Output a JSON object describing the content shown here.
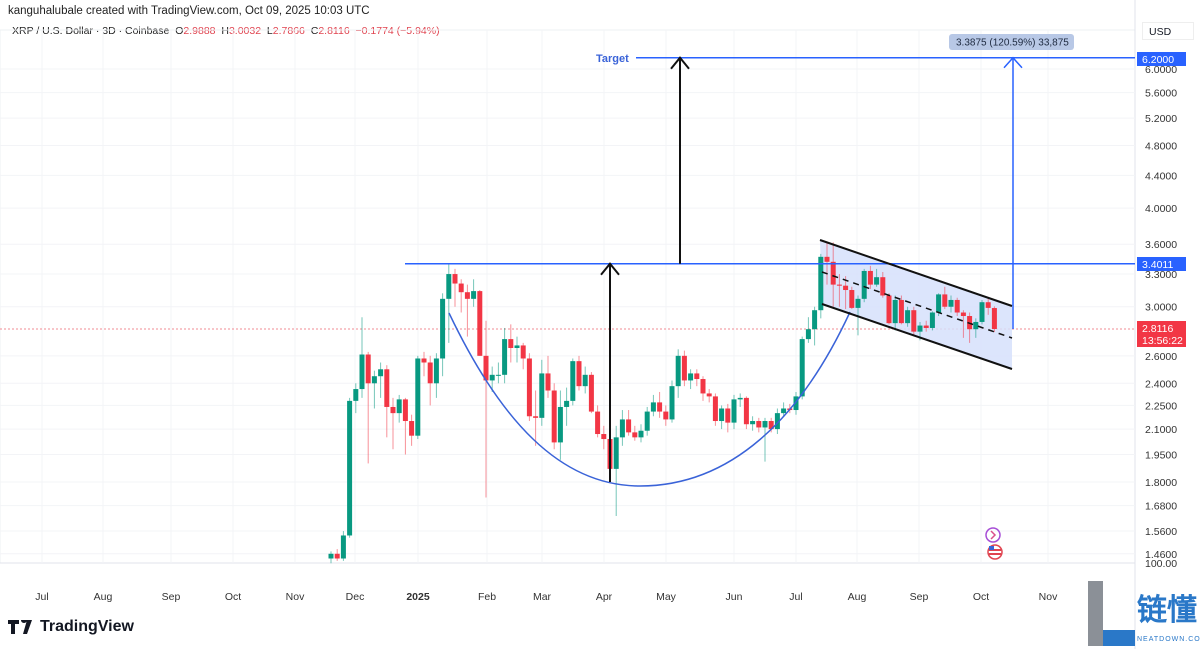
{
  "credit": "kanguhalubale created with TradingView.com, Oct 09, 2025 10:03 UTC",
  "legend": {
    "symbol": "XRP / U.S. Dollar · 3D · Coinbase",
    "open_label": "O",
    "open": "2.9888",
    "high_label": "H",
    "high": "3.0032",
    "low_label": "L",
    "low": "2.7866",
    "close_label": "C",
    "close": "2.8116",
    "change": "−0.1774 (−5.94%)"
  },
  "currency": "USD",
  "logo_text": "TradingView",
  "watermark": {
    "text": "链懂",
    "sub": "NEATDOWN.COM"
  },
  "colors": {
    "up": "#089981",
    "down": "#f23645",
    "drawing": "#2962ff",
    "accent": "#3a63d8"
  },
  "chart_data": {
    "type": "candlestick",
    "interval": "3D",
    "y_scale": "log",
    "ylim": [
      1.42,
      6.5
    ],
    "grid": true,
    "x_ticks": [
      "Jul",
      "Aug",
      "Sep",
      "Oct",
      "Nov",
      "Dec",
      "2025",
      "Feb",
      "Mar",
      "Apr",
      "May",
      "Jun",
      "Jul",
      "Aug",
      "Sep",
      "Oct",
      "Nov"
    ],
    "y_ticks": [
      "6.0000",
      "5.6000",
      "5.2000",
      "4.8000",
      "4.4000",
      "4.0000",
      "3.6000",
      "3.3000",
      "3.0000",
      "2.6000",
      "2.4000",
      "2.2500",
      "2.1000",
      "1.9500",
      "1.8000",
      "1.6800",
      "1.5600",
      "1.4600"
    ],
    "y_tick_values": [
      6.0,
      5.6,
      5.2,
      4.8,
      4.4,
      4.0,
      3.6,
      3.3,
      3.0,
      2.6,
      2.4,
      2.25,
      2.1,
      1.95,
      1.8,
      1.68,
      1.56,
      1.46
    ],
    "secondary_axis_label": "100.00",
    "candles_ohlc": [
      [
        1.44,
        1.47,
        1.42,
        1.46
      ],
      [
        1.46,
        1.48,
        1.43,
        1.44
      ],
      [
        1.44,
        1.56,
        1.43,
        1.54
      ],
      [
        1.54,
        2.3,
        1.53,
        2.28
      ],
      [
        2.28,
        2.4,
        2.2,
        2.36
      ],
      [
        2.36,
        2.91,
        2.3,
        2.61
      ],
      [
        2.61,
        2.63,
        1.9,
        2.4
      ],
      [
        2.4,
        2.49,
        2.23,
        2.45
      ],
      [
        2.45,
        2.55,
        2.3,
        2.5
      ],
      [
        2.5,
        2.53,
        2.05,
        2.24
      ],
      [
        2.24,
        2.3,
        1.98,
        2.2
      ],
      [
        2.2,
        2.32,
        2.14,
        2.29
      ],
      [
        2.29,
        2.3,
        1.95,
        2.15
      ],
      [
        2.15,
        2.19,
        2.0,
        2.06
      ],
      [
        2.06,
        2.6,
        2.04,
        2.58
      ],
      [
        2.58,
        2.63,
        2.45,
        2.55
      ],
      [
        2.55,
        2.6,
        2.25,
        2.4
      ],
      [
        2.4,
        2.62,
        2.3,
        2.58
      ],
      [
        2.58,
        3.12,
        2.45,
        3.07
      ],
      [
        3.07,
        3.4,
        2.7,
        3.3
      ],
      [
        3.3,
        3.35,
        3.0,
        3.21
      ],
      [
        3.21,
        3.25,
        2.95,
        3.13
      ],
      [
        3.13,
        3.2,
        2.75,
        3.07
      ],
      [
        3.07,
        3.25,
        3.0,
        3.14
      ],
      [
        3.14,
        3.15,
        2.6,
        2.6
      ],
      [
        2.6,
        2.88,
        1.72,
        2.42
      ],
      [
        2.42,
        2.52,
        2.34,
        2.46
      ],
      [
        2.46,
        2.55,
        2.4,
        2.46
      ],
      [
        2.46,
        2.82,
        2.4,
        2.73
      ],
      [
        2.73,
        2.85,
        2.55,
        2.66
      ],
      [
        2.66,
        2.75,
        2.55,
        2.68
      ],
      [
        2.68,
        2.7,
        2.5,
        2.58
      ],
      [
        2.58,
        2.62,
        2.15,
        2.18
      ],
      [
        2.18,
        2.35,
        2.0,
        2.17
      ],
      [
        2.17,
        2.57,
        2.12,
        2.47
      ],
      [
        2.47,
        2.6,
        2.3,
        2.35
      ],
      [
        2.35,
        2.4,
        1.98,
        2.02
      ],
      [
        2.02,
        2.35,
        1.92,
        2.24
      ],
      [
        2.24,
        2.37,
        2.12,
        2.28
      ],
      [
        2.28,
        2.58,
        2.25,
        2.56
      ],
      [
        2.56,
        2.6,
        2.35,
        2.38
      ],
      [
        2.38,
        2.52,
        2.33,
        2.46
      ],
      [
        2.46,
        2.48,
        2.2,
        2.21
      ],
      [
        2.21,
        2.25,
        2.05,
        2.07
      ],
      [
        2.07,
        2.12,
        1.98,
        2.04
      ],
      [
        2.04,
        2.14,
        1.85,
        1.87
      ],
      [
        1.87,
        2.12,
        1.63,
        2.05
      ],
      [
        2.05,
        2.22,
        2.0,
        2.16
      ],
      [
        2.16,
        2.22,
        2.06,
        2.08
      ],
      [
        2.08,
        2.12,
        2.03,
        2.05
      ],
      [
        2.05,
        2.13,
        2.02,
        2.09
      ],
      [
        2.09,
        2.24,
        2.06,
        2.21
      ],
      [
        2.21,
        2.32,
        2.18,
        2.27
      ],
      [
        2.27,
        2.34,
        2.17,
        2.21
      ],
      [
        2.21,
        2.25,
        2.12,
        2.16
      ],
      [
        2.16,
        2.42,
        2.14,
        2.38
      ],
      [
        2.38,
        2.65,
        2.3,
        2.6
      ],
      [
        2.6,
        2.64,
        2.38,
        2.42
      ],
      [
        2.42,
        2.5,
        2.36,
        2.47
      ],
      [
        2.47,
        2.5,
        2.38,
        2.43
      ],
      [
        2.43,
        2.45,
        2.28,
        2.33
      ],
      [
        2.33,
        2.36,
        2.27,
        2.31
      ],
      [
        2.31,
        2.33,
        2.12,
        2.15
      ],
      [
        2.15,
        2.25,
        2.1,
        2.23
      ],
      [
        2.23,
        2.26,
        2.08,
        2.14
      ],
      [
        2.14,
        2.32,
        2.1,
        2.29
      ],
      [
        2.29,
        2.33,
        2.24,
        2.3
      ],
      [
        2.3,
        2.31,
        2.1,
        2.13
      ],
      [
        2.13,
        2.18,
        2.09,
        2.15
      ],
      [
        2.15,
        2.17,
        2.08,
        2.11
      ],
      [
        2.11,
        2.17,
        1.91,
        2.15
      ],
      [
        2.15,
        2.17,
        2.08,
        2.1
      ],
      [
        2.1,
        2.23,
        2.07,
        2.2
      ],
      [
        2.2,
        2.27,
        2.18,
        2.23
      ],
      [
        2.23,
        2.26,
        2.2,
        2.22
      ],
      [
        2.22,
        2.34,
        2.19,
        2.31
      ],
      [
        2.31,
        2.75,
        2.29,
        2.73
      ],
      [
        2.73,
        2.91,
        2.7,
        2.81
      ],
      [
        2.81,
        3.0,
        2.68,
        2.97
      ],
      [
        2.97,
        3.5,
        2.9,
        3.47
      ],
      [
        3.47,
        3.62,
        3.2,
        3.42
      ],
      [
        3.42,
        3.62,
        3.0,
        3.2
      ],
      [
        3.2,
        3.3,
        3.0,
        3.19
      ],
      [
        3.19,
        3.28,
        2.98,
        3.15
      ],
      [
        3.15,
        3.18,
        2.98,
        2.99
      ],
      [
        2.99,
        3.1,
        2.76,
        3.07
      ],
      [
        3.07,
        3.35,
        3.04,
        3.33
      ],
      [
        3.33,
        3.38,
        3.16,
        3.2
      ],
      [
        3.2,
        3.35,
        3.18,
        3.27
      ],
      [
        3.27,
        3.32,
        3.08,
        3.1
      ],
      [
        3.1,
        3.12,
        2.85,
        2.86
      ],
      [
        2.86,
        3.1,
        2.8,
        3.06
      ],
      [
        3.06,
        3.1,
        2.85,
        2.86
      ],
      [
        2.86,
        3.0,
        2.83,
        2.97
      ],
      [
        2.97,
        3.0,
        2.76,
        2.79
      ],
      [
        2.79,
        2.87,
        2.72,
        2.84
      ],
      [
        2.84,
        2.88,
        2.79,
        2.82
      ],
      [
        2.82,
        2.96,
        2.8,
        2.95
      ],
      [
        2.95,
        3.12,
        2.92,
        3.11
      ],
      [
        3.11,
        3.18,
        2.98,
        3.0
      ],
      [
        3.0,
        3.1,
        2.95,
        3.06
      ],
      [
        3.06,
        3.08,
        2.92,
        2.95
      ],
      [
        2.95,
        2.97,
        2.74,
        2.92
      ],
      [
        2.92,
        2.95,
        2.7,
        2.81
      ],
      [
        2.81,
        2.9,
        2.74,
        2.87
      ],
      [
        2.87,
        3.06,
        2.85,
        3.04
      ],
      [
        3.04,
        3.07,
        2.93,
        2.99
      ],
      [
        2.9888,
        3.0032,
        2.7866,
        2.8116
      ]
    ],
    "annotations": {
      "target_label": "Target",
      "target_price": 6.2,
      "target_price_label": "6.2000",
      "neckline_price": 3.4011,
      "neckline_price_label": "3.4011",
      "last_price": 2.8116,
      "last_price_label": "2.8116",
      "countdown": "13:56:22",
      "measure_label": "3.3875 (120.59%) 33,875"
    }
  }
}
